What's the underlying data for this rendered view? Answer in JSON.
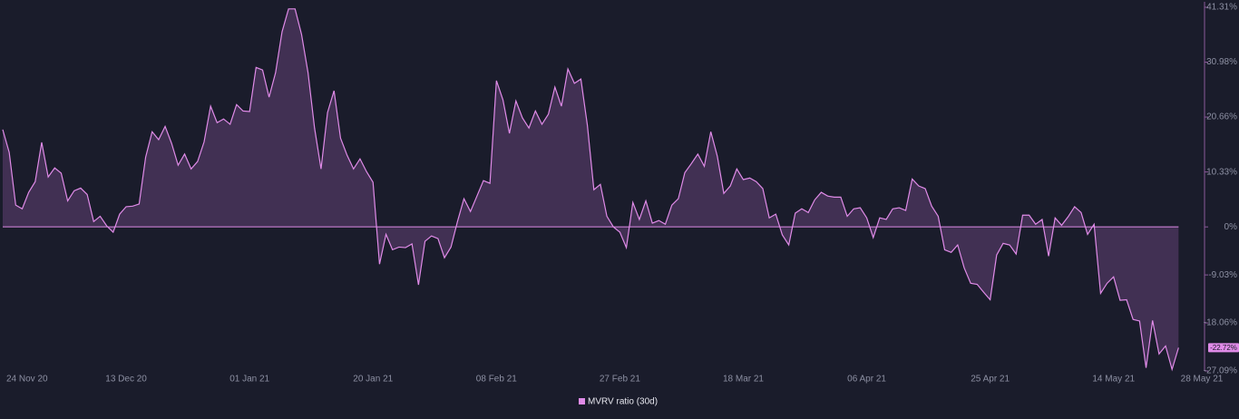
{
  "chart_data": {
    "type": "area",
    "categories": [
      "24 Nov 20",
      null,
      null,
      null,
      null,
      null,
      null,
      null,
      null,
      null,
      null,
      null,
      null,
      null,
      null,
      null,
      null,
      null,
      null,
      "13 Dec 20",
      null,
      null,
      null,
      null,
      null,
      null,
      null,
      null,
      null,
      null,
      null,
      null,
      null,
      null,
      null,
      null,
      null,
      null,
      "01 Jan 21",
      null,
      null,
      null,
      null,
      null,
      null,
      null,
      null,
      null,
      null,
      null,
      null,
      null,
      null,
      null,
      null,
      null,
      null,
      "20 Jan 21",
      null,
      null,
      null,
      null,
      null,
      null,
      null,
      null,
      null,
      null,
      null,
      null,
      null,
      null,
      null,
      null,
      null,
      null,
      "08 Feb 21",
      null,
      null,
      null,
      null,
      null,
      null,
      null,
      null,
      null,
      null,
      null,
      null,
      null,
      null,
      null,
      null,
      null,
      null,
      "27 Feb 21",
      null,
      null,
      null,
      null,
      null,
      null,
      null,
      null,
      null,
      null,
      null,
      null,
      null,
      null,
      null,
      null,
      null,
      null,
      "18 Mar 21",
      null,
      null,
      null,
      null,
      null,
      null,
      null,
      null,
      null,
      null,
      null,
      null,
      null,
      null,
      null,
      null,
      null,
      null,
      "06 Apr 21",
      null,
      null,
      null,
      null,
      null,
      null,
      null,
      null,
      null,
      null,
      null,
      null,
      null,
      null,
      null,
      null,
      null,
      null,
      "25 Apr 21",
      null,
      null,
      null,
      null,
      null,
      null,
      null,
      null,
      null,
      null,
      null,
      null,
      null,
      null,
      null,
      null,
      null,
      null,
      "14 May 21",
      null,
      null,
      null,
      null,
      null,
      null,
      null,
      null,
      null,
      null,
      null,
      null,
      null,
      "28 May 21"
    ],
    "series": [
      {
        "name": "MVRV ratio (30d)",
        "color": "#e08be8",
        "values": [
          18.3,
          14.0,
          4.1,
          3.4,
          6.5,
          8.5,
          15.9,
          9.4,
          11.1,
          10.1,
          4.9,
          6.8,
          7.3,
          6.1,
          1.0,
          2.0,
          0.2,
          -1.0,
          2.4,
          3.8,
          3.9,
          4.3,
          13.1,
          17.9,
          16.4,
          18.9,
          15.7,
          11.6,
          13.7,
          10.9,
          12.3,
          16.0,
          22.7,
          19.6,
          20.3,
          19.3,
          23.0,
          21.8,
          21.7,
          30.0,
          29.5,
          24.4,
          29.0,
          36.7,
          41.0,
          41.0,
          36.2,
          29.0,
          18.6,
          10.9,
          21.5,
          25.6,
          16.7,
          13.5,
          10.9,
          12.8,
          10.4,
          8.4,
          -7.0,
          -1.4,
          -4.3,
          -3.8,
          -3.9,
          -3.2,
          -10.9,
          -2.7,
          -1.7,
          -2.2,
          -5.8,
          -3.8,
          1.0,
          5.3,
          2.9,
          5.8,
          8.7,
          8.2,
          27.5,
          23.9,
          17.6,
          23.7,
          20.5,
          18.6,
          21.8,
          19.3,
          21.2,
          26.3,
          22.7,
          29.7,
          27.0,
          27.8,
          19.1,
          7.0,
          8.0,
          2.0,
          0,
          -1.0,
          -3.9,
          4.6,
          1.4,
          4.9,
          0.7,
          1.2,
          0.5,
          4.1,
          5.3,
          10.2,
          11.9,
          13.7,
          11.4,
          17.9,
          13.3,
          6.3,
          7.7,
          10.9,
          8.9,
          9.2,
          8.5,
          7.2,
          1.7,
          2.4,
          -1.5,
          -3.4,
          2.6,
          3.4,
          2.7,
          5.1,
          6.5,
          5.8,
          5.6,
          5.6,
          2.0,
          3.4,
          3.6,
          1.7,
          -2.0,
          1.7,
          1.4,
          3.4,
          3.6,
          3.1,
          9.0,
          7.7,
          7.2,
          3.9,
          2.0,
          -4.3,
          -4.8,
          -3.4,
          -7.7,
          -10.6,
          -10.8,
          -12.3,
          -13.7,
          -5.3,
          -3.1,
          -3.4,
          -5.1,
          2.2,
          2.2,
          0.5,
          1.4,
          -5.5,
          1.7,
          0.3,
          1.9,
          3.8,
          2.7,
          -1.4,
          0.5,
          -12.5,
          -10.6,
          -9.4,
          -13.8,
          -13.7,
          -17.4,
          -17.7,
          -26.5,
          -17.6,
          -23.9,
          -22.4,
          -26.8,
          -22.72,
          null,
          null,
          null,
          null
        ],
        "value_labels": [
          null,
          null,
          null,
          null,
          null,
          null,
          null,
          null,
          null,
          null,
          null,
          null,
          null,
          null,
          null,
          null,
          null,
          null,
          null,
          null,
          null,
          null,
          null,
          null,
          null,
          null,
          null,
          null,
          null,
          null,
          null,
          null,
          null,
          null,
          null,
          null,
          null,
          null,
          null,
          null,
          null,
          null,
          null,
          null,
          null,
          null,
          null,
          null,
          null,
          null,
          null,
          null,
          null,
          null,
          null,
          null,
          null,
          null,
          null,
          null,
          null,
          null,
          null,
          null,
          null,
          null,
          null,
          null,
          null,
          null,
          null,
          null,
          null,
          null,
          null,
          null,
          null,
          null,
          null,
          null,
          null,
          null,
          null,
          null,
          null,
          null,
          null,
          null,
          null,
          null,
          null,
          null,
          null,
          null,
          null,
          null,
          null,
          null,
          null,
          null,
          null,
          null,
          null,
          null,
          null,
          null,
          null,
          null,
          null,
          null,
          null,
          null,
          null,
          null,
          null,
          null,
          null,
          null,
          null,
          null,
          null,
          null,
          null,
          null,
          null,
          null,
          null,
          null,
          null,
          null,
          null,
          null,
          null,
          null,
          null,
          null,
          null,
          null,
          null,
          null,
          null,
          null,
          null,
          null,
          null,
          null,
          null,
          null,
          null,
          null,
          null,
          null,
          null,
          null,
          null,
          null,
          null,
          null,
          null,
          null,
          null,
          null,
          null,
          null,
          null,
          null,
          null,
          null,
          null,
          null,
          null,
          null,
          null,
          null,
          null,
          null,
          null,
          null,
          null,
          null,
          null,
          "-22.72%",
          null,
          null,
          null,
          null
        ]
      }
    ],
    "ylim": [
      -27.09,
      41.31
    ],
    "yticks": [
      {
        "value": 41.31,
        "label": "41.31%"
      },
      {
        "value": 30.98,
        "label": "30.98%"
      },
      {
        "value": 20.66,
        "label": "20.66%"
      },
      {
        "value": 10.33,
        "label": "10.33%"
      },
      {
        "value": 0,
        "label": "0%"
      },
      {
        "value": -9.03,
        "label": "-9.03%"
      },
      {
        "value": -18.06,
        "label": "-18.06%"
      },
      {
        "value": -27.09,
        "label": "-27.09%"
      }
    ],
    "legend": "bottom"
  }
}
